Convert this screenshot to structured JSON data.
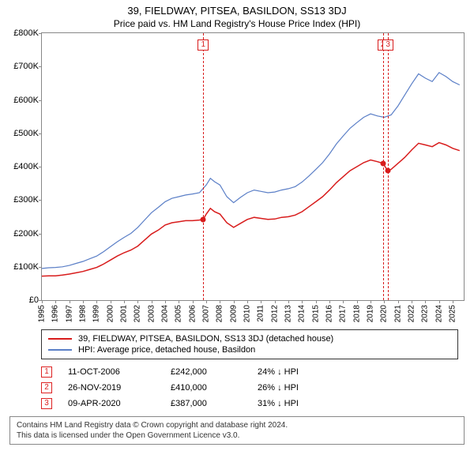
{
  "title": "39, FIELDWAY, PITSEA, BASILDON, SS13 3DJ",
  "subtitle": "Price paid vs. HM Land Registry's House Price Index (HPI)",
  "chart": {
    "type": "line",
    "background_color": "#ffffff",
    "border_color": "#888888",
    "y": {
      "min": 0,
      "max": 800000,
      "ticks": [
        0,
        100000,
        200000,
        300000,
        400000,
        500000,
        600000,
        700000,
        800000
      ],
      "tick_labels": [
        "£0",
        "£100K",
        "£200K",
        "£300K",
        "£400K",
        "£500K",
        "£600K",
        "£700K",
        "£800K"
      ],
      "label_fontsize": 11
    },
    "x": {
      "min": 1995,
      "max": 2025.8,
      "ticks": [
        1995,
        1996,
        1997,
        1998,
        1999,
        2000,
        2001,
        2002,
        2003,
        2004,
        2005,
        2006,
        2007,
        2008,
        2009,
        2010,
        2011,
        2012,
        2013,
        2014,
        2015,
        2016,
        2017,
        2018,
        2019,
        2020,
        2021,
        2022,
        2023,
        2024,
        2025
      ],
      "tick_labels": [
        "1995",
        "1996",
        "1997",
        "1998",
        "1999",
        "2000",
        "2001",
        "2002",
        "2003",
        "2004",
        "2005",
        "2006",
        "2007",
        "2008",
        "2009",
        "2010",
        "2011",
        "2012",
        "2013",
        "2014",
        "2015",
        "2016",
        "2017",
        "2018",
        "2019",
        "2020",
        "2021",
        "2022",
        "2023",
        "2024",
        "2025"
      ],
      "label_fontsize": 10
    },
    "series": [
      {
        "name": "property",
        "label": "39, FIELDWAY, PITSEA, BASILDON, SS13 3DJ (detached house)",
        "color": "#d81c1c",
        "line_width": 1.5,
        "points": [
          [
            1995.0,
            72000
          ],
          [
            1995.5,
            73000
          ],
          [
            1996.0,
            73000
          ],
          [
            1996.5,
            75000
          ],
          [
            1997.0,
            78000
          ],
          [
            1997.5,
            82000
          ],
          [
            1998.0,
            86000
          ],
          [
            1998.5,
            92000
          ],
          [
            1999.0,
            98000
          ],
          [
            1999.5,
            108000
          ],
          [
            2000.0,
            120000
          ],
          [
            2000.5,
            132000
          ],
          [
            2001.0,
            142000
          ],
          [
            2001.5,
            150000
          ],
          [
            2002.0,
            162000
          ],
          [
            2002.5,
            180000
          ],
          [
            2003.0,
            198000
          ],
          [
            2003.5,
            210000
          ],
          [
            2004.0,
            225000
          ],
          [
            2004.5,
            232000
          ],
          [
            2005.0,
            235000
          ],
          [
            2005.5,
            238000
          ],
          [
            2006.0,
            238000
          ],
          [
            2006.5,
            240000
          ],
          [
            2006.78,
            242000
          ],
          [
            2007.0,
            258000
          ],
          [
            2007.3,
            275000
          ],
          [
            2007.6,
            265000
          ],
          [
            2008.0,
            258000
          ],
          [
            2008.5,
            232000
          ],
          [
            2009.0,
            218000
          ],
          [
            2009.5,
            230000
          ],
          [
            2010.0,
            242000
          ],
          [
            2010.5,
            248000
          ],
          [
            2011.0,
            245000
          ],
          [
            2011.5,
            242000
          ],
          [
            2012.0,
            243000
          ],
          [
            2012.5,
            248000
          ],
          [
            2013.0,
            250000
          ],
          [
            2013.5,
            255000
          ],
          [
            2014.0,
            265000
          ],
          [
            2014.5,
            280000
          ],
          [
            2015.0,
            295000
          ],
          [
            2015.5,
            310000
          ],
          [
            2016.0,
            330000
          ],
          [
            2016.5,
            352000
          ],
          [
            2017.0,
            370000
          ],
          [
            2017.5,
            388000
          ],
          [
            2018.0,
            400000
          ],
          [
            2018.5,
            412000
          ],
          [
            2019.0,
            420000
          ],
          [
            2019.5,
            415000
          ],
          [
            2019.9,
            410000
          ],
          [
            2020.27,
            387000
          ],
          [
            2020.5,
            392000
          ],
          [
            2021.0,
            410000
          ],
          [
            2021.5,
            428000
          ],
          [
            2022.0,
            450000
          ],
          [
            2022.5,
            470000
          ],
          [
            2023.0,
            465000
          ],
          [
            2023.5,
            460000
          ],
          [
            2024.0,
            472000
          ],
          [
            2024.5,
            465000
          ],
          [
            2025.0,
            455000
          ],
          [
            2025.5,
            448000
          ]
        ]
      },
      {
        "name": "hpi",
        "label": "HPI: Average price, detached house, Basildon",
        "color": "#5b7fc7",
        "line_width": 1.2,
        "points": [
          [
            1995.0,
            95000
          ],
          [
            1995.5,
            97000
          ],
          [
            1996.0,
            98000
          ],
          [
            1996.5,
            100000
          ],
          [
            1997.0,
            104000
          ],
          [
            1997.5,
            110000
          ],
          [
            1998.0,
            116000
          ],
          [
            1998.5,
            124000
          ],
          [
            1999.0,
            132000
          ],
          [
            1999.5,
            145000
          ],
          [
            2000.0,
            160000
          ],
          [
            2000.5,
            175000
          ],
          [
            2001.0,
            188000
          ],
          [
            2001.5,
            200000
          ],
          [
            2002.0,
            218000
          ],
          [
            2002.5,
            240000
          ],
          [
            2003.0,
            262000
          ],
          [
            2003.5,
            278000
          ],
          [
            2004.0,
            295000
          ],
          [
            2004.5,
            305000
          ],
          [
            2005.0,
            310000
          ],
          [
            2005.5,
            315000
          ],
          [
            2006.0,
            318000
          ],
          [
            2006.5,
            322000
          ],
          [
            2007.0,
            345000
          ],
          [
            2007.3,
            365000
          ],
          [
            2007.6,
            355000
          ],
          [
            2008.0,
            345000
          ],
          [
            2008.5,
            310000
          ],
          [
            2009.0,
            292000
          ],
          [
            2009.5,
            308000
          ],
          [
            2010.0,
            322000
          ],
          [
            2010.5,
            330000
          ],
          [
            2011.0,
            326000
          ],
          [
            2011.5,
            322000
          ],
          [
            2012.0,
            324000
          ],
          [
            2012.5,
            330000
          ],
          [
            2013.0,
            334000
          ],
          [
            2013.5,
            340000
          ],
          [
            2014.0,
            354000
          ],
          [
            2014.5,
            372000
          ],
          [
            2015.0,
            392000
          ],
          [
            2015.5,
            412000
          ],
          [
            2016.0,
            438000
          ],
          [
            2016.5,
            468000
          ],
          [
            2017.0,
            492000
          ],
          [
            2017.5,
            515000
          ],
          [
            2018.0,
            532000
          ],
          [
            2018.5,
            548000
          ],
          [
            2019.0,
            558000
          ],
          [
            2019.5,
            552000
          ],
          [
            2020.0,
            548000
          ],
          [
            2020.5,
            555000
          ],
          [
            2021.0,
            582000
          ],
          [
            2021.5,
            615000
          ],
          [
            2022.0,
            648000
          ],
          [
            2022.5,
            678000
          ],
          [
            2023.0,
            665000
          ],
          [
            2023.5,
            655000
          ],
          [
            2024.0,
            682000
          ],
          [
            2024.5,
            670000
          ],
          [
            2025.0,
            655000
          ],
          [
            2025.5,
            645000
          ]
        ]
      }
    ],
    "sale_markers": [
      {
        "n": "1",
        "x": 2006.78,
        "y": 242000,
        "box_top_offset": 8
      },
      {
        "n": "2",
        "x": 2019.9,
        "y": 410000,
        "box_top_offset": 8
      },
      {
        "n": "3",
        "x": 2020.27,
        "y": 387000,
        "box_top_offset": 8
      }
    ],
    "marker_color": "#d81c1c",
    "marker_box_border": "#d81c1c"
  },
  "legend": {
    "rows": [
      {
        "color": "#d81c1c",
        "label": "39, FIELDWAY, PITSEA, BASILDON, SS13 3DJ (detached house)"
      },
      {
        "color": "#5b7fc7",
        "label": "HPI: Average price, detached house, Basildon"
      }
    ]
  },
  "sales": [
    {
      "n": "1",
      "date": "11-OCT-2006",
      "price": "£242,000",
      "diff": "24% ↓ HPI"
    },
    {
      "n": "2",
      "date": "26-NOV-2019",
      "price": "£410,000",
      "diff": "26% ↓ HPI"
    },
    {
      "n": "3",
      "date": "09-APR-2020",
      "price": "£387,000",
      "diff": "31% ↓ HPI"
    }
  ],
  "footer": {
    "line1": "Contains HM Land Registry data © Crown copyright and database right 2024.",
    "line2": "This data is licensed under the Open Government Licence v3.0."
  }
}
